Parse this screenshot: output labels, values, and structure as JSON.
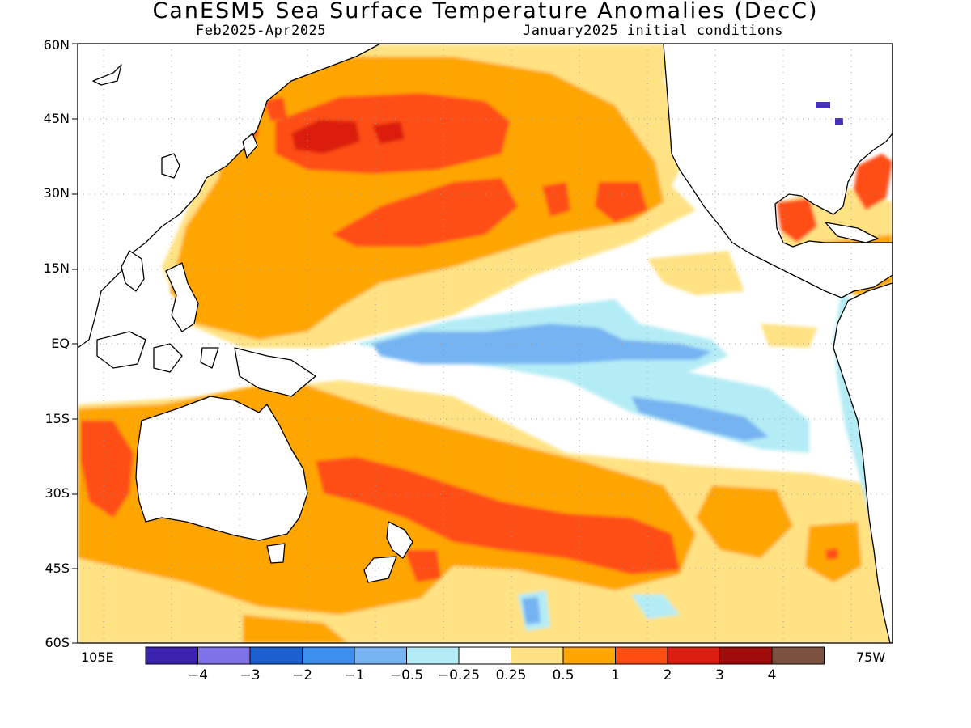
{
  "title": "CanESM5 Sea Surface Temperature Anomalies (DecC)",
  "period": "Feb2025-Apr2025",
  "init": "January2025 initial conditions",
  "lat_labels": [
    "60N",
    "45N",
    "30N",
    "15N",
    "EQ",
    "15S",
    "30S",
    "45S",
    "60S"
  ],
  "lon_labels": {
    "west": "105E",
    "east": "75W"
  },
  "colorbar": {
    "colors": [
      "#3b23b0",
      "#7f72e8",
      "#1c5fd0",
      "#3c8fee",
      "#76b3f2",
      "#b4ecf5",
      "#ffffff",
      "#ffe283",
      "#ffa500",
      "#ff4d12",
      "#dc1e10",
      "#a00b0b",
      "#7d5140"
    ],
    "labels": [
      "-4",
      "-3",
      "-2",
      "-1",
      "-0.5",
      "-0.25",
      "0.25",
      "0.5",
      "1",
      "2",
      "3",
      "4"
    ]
  },
  "colors": {
    "land": "#ffffff",
    "coast": "#000000",
    "grid": "#9a9a9a"
  }
}
